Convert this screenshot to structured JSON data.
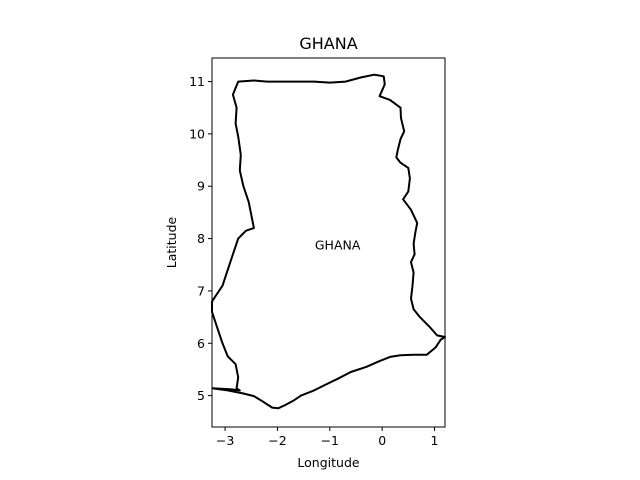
{
  "title": "GHANA",
  "xlabel": "Longitude",
  "ylabel": "Latitude",
  "map_label": "GHANA",
  "colors": {
    "outline": "#000000",
    "axes": "#000000",
    "background": "#ffffff"
  },
  "chart_data": {
    "type": "map",
    "title": "GHANA",
    "xlabel": "Longitude",
    "ylabel": "Latitude",
    "xlim": [
      -3.25,
      1.2
    ],
    "ylim": [
      4.4,
      11.45
    ],
    "xticks": [
      -3,
      -2,
      -1,
      0,
      1
    ],
    "xtick_labels": [
      "−3",
      "−2",
      "−1",
      "0",
      "1"
    ],
    "yticks": [
      5,
      6,
      7,
      8,
      9,
      10,
      11
    ],
    "ytick_labels": [
      "5",
      "6",
      "7",
      "8",
      "9",
      "10",
      "11"
    ],
    "annotations": [
      {
        "text": "GHANA",
        "lon": -0.85,
        "lat": 7.87
      }
    ],
    "outline": [
      [
        -3.25,
        5.14
      ],
      [
        -2.95,
        5.1
      ],
      [
        -2.65,
        5.04
      ],
      [
        -2.45,
        4.99
      ],
      [
        -2.3,
        4.9
      ],
      [
        -2.1,
        4.77
      ],
      [
        -1.98,
        4.76
      ],
      [
        -1.85,
        4.82
      ],
      [
        -1.7,
        4.9
      ],
      [
        -1.55,
        5.0
      ],
      [
        -1.3,
        5.1
      ],
      [
        -1.1,
        5.2
      ],
      [
        -0.85,
        5.32
      ],
      [
        -0.6,
        5.45
      ],
      [
        -0.3,
        5.55
      ],
      [
        -0.05,
        5.66
      ],
      [
        0.15,
        5.74
      ],
      [
        0.35,
        5.77
      ],
      [
        0.6,
        5.78
      ],
      [
        0.85,
        5.78
      ],
      [
        1.02,
        5.92
      ],
      [
        1.12,
        6.07
      ],
      [
        1.2,
        6.12
      ],
      [
        1.05,
        6.15
      ],
      [
        0.92,
        6.3
      ],
      [
        0.72,
        6.5
      ],
      [
        0.6,
        6.65
      ],
      [
        0.55,
        6.85
      ],
      [
        0.58,
        7.1
      ],
      [
        0.6,
        7.35
      ],
      [
        0.55,
        7.55
      ],
      [
        0.62,
        7.7
      ],
      [
        0.6,
        7.9
      ],
      [
        0.63,
        8.1
      ],
      [
        0.67,
        8.3
      ],
      [
        0.55,
        8.55
      ],
      [
        0.4,
        8.75
      ],
      [
        0.5,
        8.9
      ],
      [
        0.53,
        9.15
      ],
      [
        0.5,
        9.35
      ],
      [
        0.35,
        9.45
      ],
      [
        0.27,
        9.55
      ],
      [
        0.3,
        9.7
      ],
      [
        0.35,
        9.9
      ],
      [
        0.42,
        10.05
      ],
      [
        0.36,
        10.3
      ],
      [
        0.35,
        10.5
      ],
      [
        0.15,
        10.65
      ],
      [
        -0.05,
        10.72
      ],
      [
        0.05,
        10.95
      ],
      [
        0.03,
        11.1
      ],
      [
        -0.15,
        11.13
      ],
      [
        -0.4,
        11.08
      ],
      [
        -0.7,
        11.0
      ],
      [
        -1.0,
        10.98
      ],
      [
        -1.3,
        11.0
      ],
      [
        -1.6,
        11.0
      ],
      [
        -1.9,
        11.0
      ],
      [
        -2.2,
        11.0
      ],
      [
        -2.45,
        11.02
      ],
      [
        -2.75,
        11.0
      ],
      [
        -2.85,
        10.75
      ],
      [
        -2.78,
        10.5
      ],
      [
        -2.8,
        10.2
      ],
      [
        -2.75,
        9.95
      ],
      [
        -2.7,
        9.6
      ],
      [
        -2.72,
        9.3
      ],
      [
        -2.65,
        9.0
      ],
      [
        -2.55,
        8.7
      ],
      [
        -2.5,
        8.45
      ],
      [
        -2.45,
        8.2
      ],
      [
        -2.6,
        8.15
      ],
      [
        -2.75,
        8.0
      ],
      [
        -2.85,
        7.7
      ],
      [
        -2.95,
        7.4
      ],
      [
        -3.05,
        7.1
      ],
      [
        -3.25,
        6.8
      ],
      [
        -3.25,
        6.6
      ],
      [
        -3.15,
        6.3
      ],
      [
        -3.05,
        6.0
      ],
      [
        -2.95,
        5.75
      ],
      [
        -2.8,
        5.6
      ],
      [
        -2.75,
        5.35
      ],
      [
        -2.78,
        5.14
      ],
      [
        -2.72,
        5.1
      ],
      [
        -2.9,
        5.12
      ],
      [
        -3.25,
        5.14
      ]
    ]
  }
}
